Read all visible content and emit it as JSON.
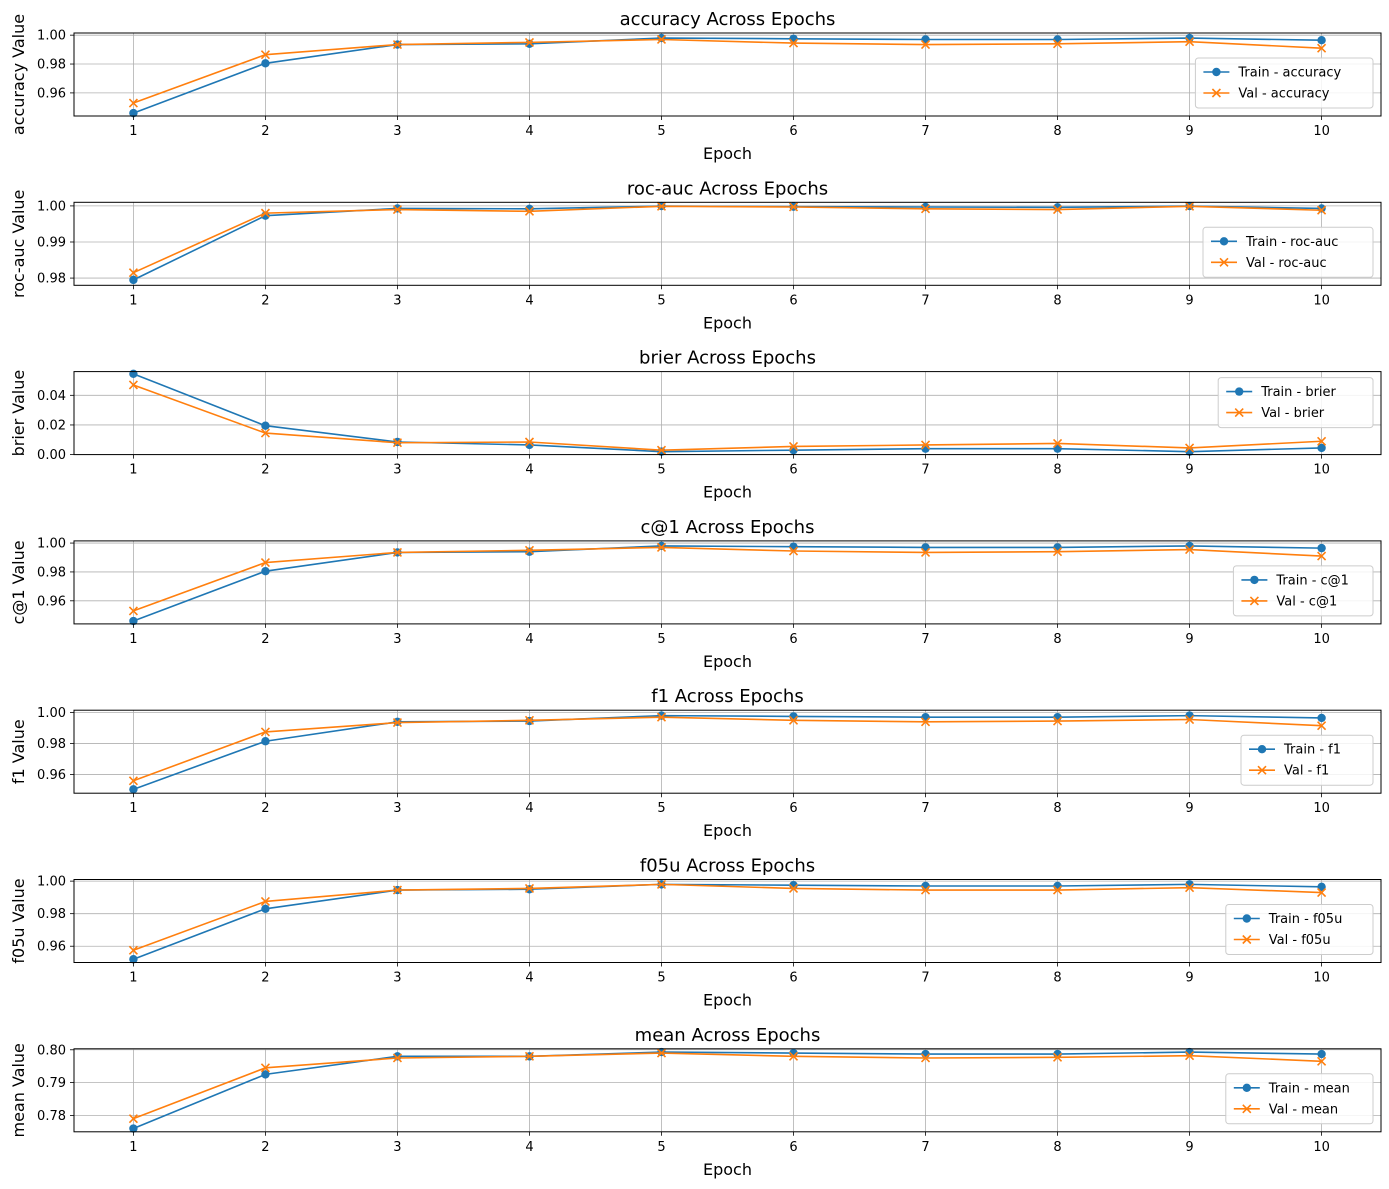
{
  "chart_data": [
    {
      "type": "line",
      "title": "accuracy Across Epochs",
      "xlabel": "Epoch",
      "ylabel": "accuracy Value",
      "x": [
        1,
        2,
        3,
        4,
        5,
        6,
        7,
        8,
        9,
        10
      ],
      "ylim": [
        0.944,
        1.0015
      ],
      "yticks": [
        0.96,
        0.98,
        1.0
      ],
      "ytick_labels": [
        "0.96",
        "0.98",
        "1.00"
      ],
      "grid": true,
      "legend_position": "lower right",
      "series": [
        {
          "name": "Train - accuracy",
          "color": "#1f77b4",
          "marker": "circle",
          "values": [
            0.946,
            0.9805,
            0.9935,
            0.994,
            0.998,
            0.9975,
            0.997,
            0.997,
            0.998,
            0.9965
          ]
        },
        {
          "name": "Val - accuracy",
          "color": "#ff7f0e",
          "marker": "x",
          "values": [
            0.953,
            0.9865,
            0.9935,
            0.995,
            0.997,
            0.9945,
            0.9935,
            0.994,
            0.9955,
            0.991
          ]
        }
      ]
    },
    {
      "type": "line",
      "title": "roc-auc Across Epochs",
      "xlabel": "Epoch",
      "ylabel": "roc-auc Value",
      "x": [
        1,
        2,
        3,
        4,
        5,
        6,
        7,
        8,
        9,
        10
      ],
      "ylim": [
        0.978,
        1.001
      ],
      "yticks": [
        0.98,
        0.99,
        1.0
      ],
      "ytick_labels": [
        "0.98",
        "0.99",
        "1.00"
      ],
      "grid": true,
      "legend_position": "lower right",
      "series": [
        {
          "name": "Train - roc-auc",
          "color": "#1f77b4",
          "marker": "circle",
          "values": [
            0.9795,
            0.9973,
            0.9993,
            0.9992,
            0.99995,
            0.9998,
            0.9997,
            0.9996,
            0.99995,
            0.9993
          ]
        },
        {
          "name": "Val - roc-auc",
          "color": "#ff7f0e",
          "marker": "x",
          "values": [
            0.9815,
            0.998,
            0.999,
            0.9985,
            0.9999,
            0.9997,
            0.9992,
            0.999,
            0.9999,
            0.9988
          ]
        }
      ]
    },
    {
      "type": "line",
      "title": "brier Across Epochs",
      "xlabel": "Epoch",
      "ylabel": "brier Value",
      "x": [
        1,
        2,
        3,
        4,
        5,
        6,
        7,
        8,
        9,
        10
      ],
      "ylim": [
        0.0,
        0.056
      ],
      "yticks": [
        0.0,
        0.02,
        0.04
      ],
      "ytick_labels": [
        "0.00",
        "0.02",
        "0.04"
      ],
      "grid": true,
      "legend_position": "upper right",
      "series": [
        {
          "name": "Train - brier",
          "color": "#1f77b4",
          "marker": "circle",
          "values": [
            0.0545,
            0.0195,
            0.0085,
            0.0065,
            0.002,
            0.003,
            0.004,
            0.004,
            0.002,
            0.0045
          ]
        },
        {
          "name": "Val - brier",
          "color": "#ff7f0e",
          "marker": "x",
          "values": [
            0.047,
            0.0145,
            0.008,
            0.0085,
            0.003,
            0.0055,
            0.0065,
            0.0075,
            0.0045,
            0.009
          ]
        }
      ]
    },
    {
      "type": "line",
      "title": "c@1 Across Epochs",
      "xlabel": "Epoch",
      "ylabel": "c@1 Value",
      "x": [
        1,
        2,
        3,
        4,
        5,
        6,
        7,
        8,
        9,
        10
      ],
      "ylim": [
        0.944,
        1.0015
      ],
      "yticks": [
        0.96,
        0.98,
        1.0
      ],
      "ytick_labels": [
        "0.96",
        "0.98",
        "1.00"
      ],
      "grid": true,
      "legend_position": "lower right",
      "series": [
        {
          "name": "Train - c@1",
          "color": "#1f77b4",
          "marker": "circle",
          "values": [
            0.946,
            0.9805,
            0.9935,
            0.994,
            0.998,
            0.9975,
            0.997,
            0.997,
            0.998,
            0.9965
          ]
        },
        {
          "name": "Val - c@1",
          "color": "#ff7f0e",
          "marker": "x",
          "values": [
            0.953,
            0.9865,
            0.9935,
            0.995,
            0.997,
            0.9945,
            0.9935,
            0.994,
            0.9955,
            0.991
          ]
        }
      ]
    },
    {
      "type": "line",
      "title": "f1 Across Epochs",
      "xlabel": "Epoch",
      "ylabel": "f1 Value",
      "x": [
        1,
        2,
        3,
        4,
        5,
        6,
        7,
        8,
        9,
        10
      ],
      "ylim": [
        0.948,
        1.0015
      ],
      "yticks": [
        0.96,
        0.98,
        1.0
      ],
      "ytick_labels": [
        "0.96",
        "0.98",
        "1.00"
      ],
      "grid": true,
      "legend_position": "lower right",
      "series": [
        {
          "name": "Train - f1",
          "color": "#1f77b4",
          "marker": "circle",
          "values": [
            0.9505,
            0.9815,
            0.994,
            0.9945,
            0.998,
            0.9975,
            0.997,
            0.997,
            0.998,
            0.9965
          ]
        },
        {
          "name": "Val - f1",
          "color": "#ff7f0e",
          "marker": "x",
          "values": [
            0.956,
            0.9875,
            0.9935,
            0.995,
            0.997,
            0.995,
            0.994,
            0.9945,
            0.9955,
            0.9915
          ]
        }
      ]
    },
    {
      "type": "line",
      "title": "f05u Across Epochs",
      "xlabel": "Epoch",
      "ylabel": "f05u Value",
      "x": [
        1,
        2,
        3,
        4,
        5,
        6,
        7,
        8,
        9,
        10
      ],
      "ylim": [
        0.95,
        1.001
      ],
      "yticks": [
        0.96,
        0.98,
        1.0
      ],
      "ytick_labels": [
        "0.96",
        "0.98",
        "1.00"
      ],
      "grid": true,
      "legend_position": "lower right",
      "series": [
        {
          "name": "Train - f05u",
          "color": "#1f77b4",
          "marker": "circle",
          "values": [
            0.952,
            0.983,
            0.9945,
            0.995,
            0.998,
            0.9975,
            0.997,
            0.997,
            0.998,
            0.9965
          ]
        },
        {
          "name": "Val - f05u",
          "color": "#ff7f0e",
          "marker": "x",
          "values": [
            0.9575,
            0.9875,
            0.9945,
            0.9955,
            0.998,
            0.9955,
            0.9945,
            0.9945,
            0.996,
            0.993
          ]
        }
      ]
    },
    {
      "type": "line",
      "title": "mean Across Epochs",
      "xlabel": "Epoch",
      "ylabel": "mean Value",
      "x": [
        1,
        2,
        3,
        4,
        5,
        6,
        7,
        8,
        9,
        10
      ],
      "ylim": [
        0.775,
        0.8003
      ],
      "yticks": [
        0.78,
        0.79,
        0.8
      ],
      "ytick_labels": [
        "0.78",
        "0.79",
        "0.80"
      ],
      "grid": true,
      "legend_position": "lower right",
      "series": [
        {
          "name": "Train - mean",
          "color": "#1f77b4",
          "marker": "circle",
          "values": [
            0.776,
            0.7925,
            0.798,
            0.798,
            0.7993,
            0.799,
            0.7987,
            0.7987,
            0.7993,
            0.7987
          ]
        },
        {
          "name": "Val - mean",
          "color": "#ff7f0e",
          "marker": "x",
          "values": [
            0.779,
            0.7945,
            0.7975,
            0.798,
            0.799,
            0.798,
            0.7975,
            0.7977,
            0.7982,
            0.7965
          ]
        }
      ]
    }
  ]
}
